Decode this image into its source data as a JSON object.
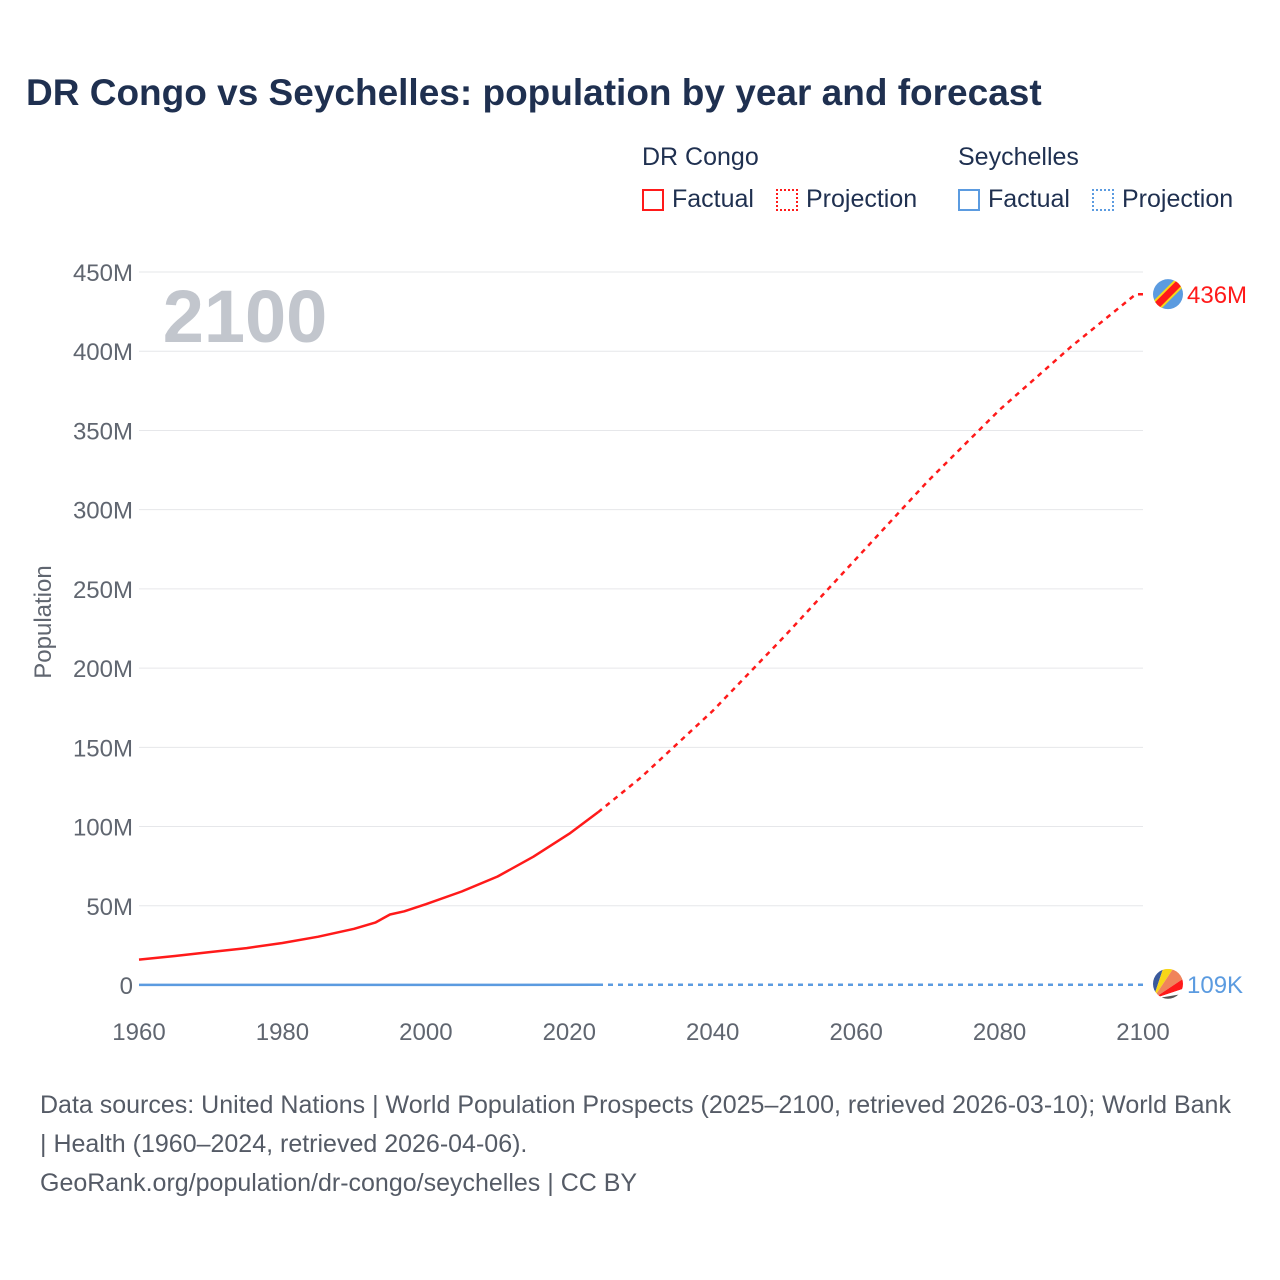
{
  "title": "DR Congo vs Seychelles: population by year and forecast",
  "legend": {
    "groups": [
      {
        "name": "DR Congo",
        "factual_label": "Factual",
        "projection_label": "Projection",
        "color": "#ff1a1a"
      },
      {
        "name": "Seychelles",
        "factual_label": "Factual",
        "projection_label": "Projection",
        "color": "#5b9be0"
      }
    ]
  },
  "year_watermark": "2100",
  "footer": {
    "sources": "Data sources: United Nations | World Population Prospects (2025–2100, retrieved 2026-03-10); World Bank | Health (1960–2024, retrieved 2026-04-06).",
    "credit": "GeoRank.org/population/dr-congo/seychelles | CC BY"
  },
  "chart_data": {
    "type": "line",
    "title": "DR Congo vs Seychelles: population by year and forecast",
    "xlabel": "",
    "ylabel": "Population",
    "xlim": [
      1960,
      2100
    ],
    "ylim": [
      0,
      450000000
    ],
    "x_ticks": [
      1960,
      1980,
      2000,
      2020,
      2040,
      2060,
      2080,
      2100
    ],
    "x_tick_labels": [
      "1960",
      "1980",
      "2000",
      "2020",
      "2040",
      "2060",
      "2080",
      "2100"
    ],
    "y_ticks": [
      0,
      50000000,
      100000000,
      150000000,
      200000000,
      250000000,
      300000000,
      350000000,
      400000000,
      450000000
    ],
    "y_tick_labels": [
      "0",
      "50M",
      "100M",
      "150M",
      "200M",
      "250M",
      "300M",
      "350M",
      "400M",
      "450M"
    ],
    "grid": true,
    "series": [
      {
        "name": "DR Congo",
        "color": "#ff1a1a",
        "end_label": "436M",
        "factual": {
          "x": [
            1960,
            1965,
            1970,
            1975,
            1980,
            1985,
            1990,
            1993,
            1995,
            1997,
            2000,
            2005,
            2010,
            2015,
            2020,
            2024
          ],
          "y": [
            16000000,
            18300000,
            20800000,
            23300000,
            26500000,
            30500000,
            35500000,
            39500000,
            44500000,
            46500000,
            51000000,
            59000000,
            68500000,
            81000000,
            95500000,
            109000000
          ]
        },
        "projection": {
          "x": [
            2024,
            2030,
            2040,
            2050,
            2060,
            2070,
            2080,
            2090,
            2099,
            2100
          ],
          "y": [
            109000000,
            131000000,
            173000000,
            220000000,
            269000000,
            318000000,
            363000000,
            403000000,
            436000000,
            436000000
          ]
        }
      },
      {
        "name": "Seychelles",
        "color": "#5b9be0",
        "end_label": "109K",
        "factual": {
          "x": [
            1960,
            1980,
            2000,
            2024
          ],
          "y": [
            41700,
            66000,
            81000,
            122000
          ]
        },
        "projection": {
          "x": [
            2024,
            2060,
            2100
          ],
          "y": [
            122000,
            130000,
            109000
          ]
        }
      }
    ]
  }
}
